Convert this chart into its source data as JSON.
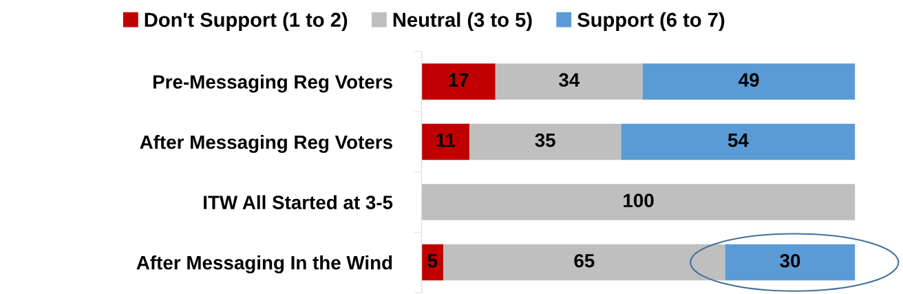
{
  "chart_data": {
    "type": "bar",
    "orientation": "horizontal",
    "stacked": true,
    "categories": [
      "Pre-Messaging Reg Voters",
      "After Messaging Reg Voters",
      "ITW All Started at 3-5",
      "After Messaging In the Wind"
    ],
    "series": [
      {
        "name": "Don't Support (1 to 2)",
        "color": "#c00000",
        "values": [
          17,
          11,
          null,
          5
        ]
      },
      {
        "name": "Neutral (3 to 5)",
        "color": "#bfbfbf",
        "values": [
          34,
          35,
          100,
          65
        ]
      },
      {
        "name": "Support (6 to 7)",
        "color": "#5b9bd5",
        "values": [
          49,
          54,
          null,
          30
        ]
      }
    ],
    "xlim": [
      0,
      100
    ],
    "tick_labels": "y",
    "data_labels": true,
    "legend": "top",
    "grid": false
  }
}
